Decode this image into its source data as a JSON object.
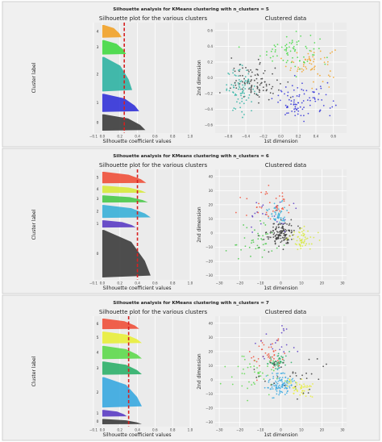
{
  "chart_data": [
    {
      "type": "silhouette-and-scatter",
      "suptitle": "Silhouette analysis for KMeans clustering with n_clusters = 5",
      "left": {
        "title": "Silhouette plot for the various clusters",
        "xlabel": "Silhouette coefficient values",
        "ylabel": "Cluster label",
        "xticks": [
          "−0.1",
          "0.0",
          "0.2",
          "0.4",
          "0.6",
          "0.8",
          "1.0"
        ],
        "xlim": [
          -0.1,
          1.0
        ],
        "avg_line": 0.25,
        "clusters": [
          {
            "label": "0",
            "size": 0.9,
            "max": 0.49,
            "color": "#3c3c3c"
          },
          {
            "label": "1",
            "size": 1.0,
            "max": 0.42,
            "color": "#3232d8"
          },
          {
            "label": "2",
            "size": 1.9,
            "max": 0.34,
            "color": "#2fb3a3"
          },
          {
            "label": "3",
            "size": 0.8,
            "max": 0.27,
            "color": "#43d943"
          },
          {
            "label": "4",
            "size": 0.7,
            "max": 0.22,
            "color": "#f2a227"
          }
        ]
      },
      "right": {
        "title": "Clustered data",
        "xlabel": "1st dimension",
        "ylabel": "2nd dimension",
        "xticks": [
          "−0.6",
          "−0.4",
          "−0.2",
          "0.0",
          "0.2",
          "0.4",
          "0.6"
        ],
        "yticks": [
          "−0.6",
          "−0.4",
          "−0.2",
          "0.0",
          "0.2",
          "0.4",
          "0.6"
        ],
        "xlim": [
          -0.75,
          0.75
        ],
        "ylim": [
          -0.7,
          0.7
        ],
        "clusters": [
          {
            "center": [
              0.35,
              0.18
            ],
            "spread": [
              0.25,
              0.2
            ],
            "color": "#f2a227",
            "n": 60
          },
          {
            "center": [
              0.1,
              0.35
            ],
            "spread": [
              0.3,
              0.2
            ],
            "color": "#43d943",
            "n": 70
          },
          {
            "center": [
              -0.45,
              -0.15
            ],
            "spread": [
              0.15,
              0.25
            ],
            "color": "#2fb3a3",
            "n": 80
          },
          {
            "center": [
              0.25,
              -0.3
            ],
            "spread": [
              0.3,
              0.2
            ],
            "color": "#3232d8",
            "n": 90
          },
          {
            "center": [
              -0.3,
              -0.05
            ],
            "spread": [
              0.25,
              0.2
            ],
            "color": "#3c3c3c",
            "n": 90
          }
        ]
      }
    },
    {
      "type": "silhouette-and-scatter",
      "suptitle": "Silhouette analysis for KMeans clustering with n_clusters = 6",
      "left": {
        "title": "Silhouette plot for the various clusters",
        "xlabel": "Silhouette coefficient values",
        "ylabel": "Cluster label",
        "xticks": [
          "−0.1",
          "0.0",
          "0.2",
          "0.4",
          "0.6",
          "0.8",
          "1.0"
        ],
        "xlim": [
          -0.1,
          1.0
        ],
        "avg_line": 0.4,
        "clusters": [
          {
            "label": "0",
            "size": 3.3,
            "max": 0.55,
            "color": "#3c3c3c"
          },
          {
            "label": "1",
            "size": 0.5,
            "max": 0.38,
            "color": "#5b3cc4"
          },
          {
            "label": "2",
            "size": 0.9,
            "max": 0.55,
            "color": "#39b0d8"
          },
          {
            "label": "3",
            "size": 0.5,
            "max": 0.52,
            "color": "#49c949"
          },
          {
            "label": "4",
            "size": 0.5,
            "max": 0.5,
            "color": "#d7ea3a"
          },
          {
            "label": "5",
            "size": 0.8,
            "max": 0.5,
            "color": "#f0503a"
          }
        ]
      },
      "right": {
        "title": "Clustered data",
        "xlabel": "1st dimension",
        "ylabel": "2nd dimension",
        "xticks": [
          "−30",
          "−20",
          "−10",
          "0",
          "10",
          "20",
          "30"
        ],
        "yticks": [
          "−30",
          "−20",
          "−10",
          "0",
          "10",
          "20",
          "30",
          "40"
        ],
        "xlim": [
          -32,
          32
        ],
        "ylim": [
          -33,
          45
        ],
        "clusters": [
          {
            "center": [
              0,
              0
            ],
            "spread": [
              6,
              8
            ],
            "color": "#3c3c3c",
            "n": 130
          },
          {
            "center": [
              -4,
              10
            ],
            "spread": [
              12,
              14
            ],
            "color": "#5b3cc4",
            "n": 25
          },
          {
            "center": [
              -2,
              14
            ],
            "spread": [
              4,
              6
            ],
            "color": "#39b0d8",
            "n": 50
          },
          {
            "center": [
              -12,
              -6
            ],
            "spread": [
              12,
              14
            ],
            "color": "#49c949",
            "n": 40
          },
          {
            "center": [
              10,
              -4
            ],
            "spread": [
              6,
              8
            ],
            "color": "#d7ea3a",
            "n": 55
          },
          {
            "center": [
              -5,
              20
            ],
            "spread": [
              10,
              10
            ],
            "color": "#f0503a",
            "n": 40
          }
        ]
      }
    },
    {
      "type": "silhouette-and-scatter",
      "suptitle": "Silhouette analysis for KMeans clustering with n_clusters = 7",
      "left": {
        "title": "Silhouette plot for the various clusters",
        "xlabel": "Silhouette coefficient values",
        "ylabel": "Cluster label",
        "xticks": [
          "−0.1",
          "0.0",
          "0.2",
          "0.4",
          "0.6",
          "0.8",
          "1.0"
        ],
        "xlim": [
          -0.1,
          1.0
        ],
        "avg_line": 0.3,
        "clusters": [
          {
            "label": "0",
            "size": 0.4,
            "max": 0.45,
            "color": "#3c3c3c"
          },
          {
            "label": "1",
            "size": 0.5,
            "max": 0.28,
            "color": "#5b3cc4"
          },
          {
            "label": "2",
            "size": 2.3,
            "max": 0.45,
            "color": "#39a9e0"
          },
          {
            "label": "3",
            "size": 1.0,
            "max": 0.45,
            "color": "#2eb06a"
          },
          {
            "label": "4",
            "size": 1.0,
            "max": 0.45,
            "color": "#5ed94d"
          },
          {
            "label": "5",
            "size": 0.9,
            "max": 0.45,
            "color": "#e9ee3a"
          },
          {
            "label": "6",
            "size": 0.8,
            "max": 0.42,
            "color": "#f0503a"
          }
        ]
      },
      "right": {
        "title": "Clustered data",
        "xlabel": "1st dimension",
        "ylabel": "2nd dimension",
        "xticks": [
          "−30",
          "−20",
          "−10",
          "0",
          "10",
          "20",
          "30"
        ],
        "yticks": [
          "−30",
          "−20",
          "−10",
          "0",
          "10",
          "20",
          "30",
          "40"
        ],
        "xlim": [
          -32,
          32
        ],
        "ylim": [
          -33,
          45
        ],
        "clusters": [
          {
            "center": [
              -1,
              13
            ],
            "spread": [
              5,
              5
            ],
            "color": "#2eb06a",
            "n": 50
          },
          {
            "center": [
              0,
              -3
            ],
            "spread": [
              6,
              8
            ],
            "color": "#39a9e0",
            "n": 110
          },
          {
            "center": [
              9,
              -6
            ],
            "spread": [
              6,
              6
            ],
            "color": "#e9ee3a",
            "n": 50
          },
          {
            "center": [
              -12,
              3
            ],
            "spread": [
              12,
              14
            ],
            "color": "#5ed94d",
            "n": 45
          },
          {
            "center": [
              -6,
              18
            ],
            "spread": [
              10,
              10
            ],
            "color": "#f0503a",
            "n": 40
          },
          {
            "center": [
              5,
              5
            ],
            "spread": [
              14,
              16
            ],
            "color": "#3c3c3c",
            "n": 35
          },
          {
            "center": [
              -3,
              25
            ],
            "spread": [
              12,
              12
            ],
            "color": "#5b3cc4",
            "n": 20
          }
        ]
      }
    }
  ]
}
